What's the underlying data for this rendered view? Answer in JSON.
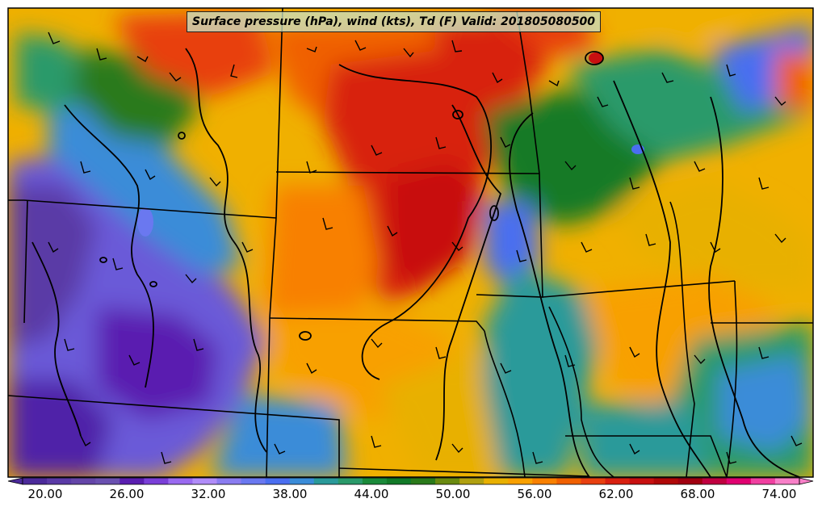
{
  "title": "Surface pressure (hPa), wind (kts), Td (F) Valid: 201805080500",
  "colorbar": {
    "tick_labels": [
      "20.00",
      "26.00",
      "32.00",
      "38.00",
      "44.00",
      "50.00",
      "56.00",
      "62.00",
      "68.00",
      "74.00"
    ],
    "colors": [
      "#4b2a9a",
      "#5a3aa6",
      "#6445a8",
      "#6a50b0",
      "#5a1eb0",
      "#7a3fd8",
      "#9a6af0",
      "#b08cf8",
      "#8a7cf0",
      "#6a78f0",
      "#4a6ef0",
      "#3a8cd8",
      "#2a9a9a",
      "#2a9a6a",
      "#1a8a3a",
      "#127a28",
      "#2a7a1a",
      "#6a8a10",
      "#b0a010",
      "#e8b000",
      "#f8a000",
      "#f88000",
      "#f06000",
      "#e84010",
      "#d82010",
      "#c81010",
      "#b00808",
      "#a00010",
      "#c00040",
      "#e00070",
      "#f040a0",
      "#f880c8"
    ]
  }
}
